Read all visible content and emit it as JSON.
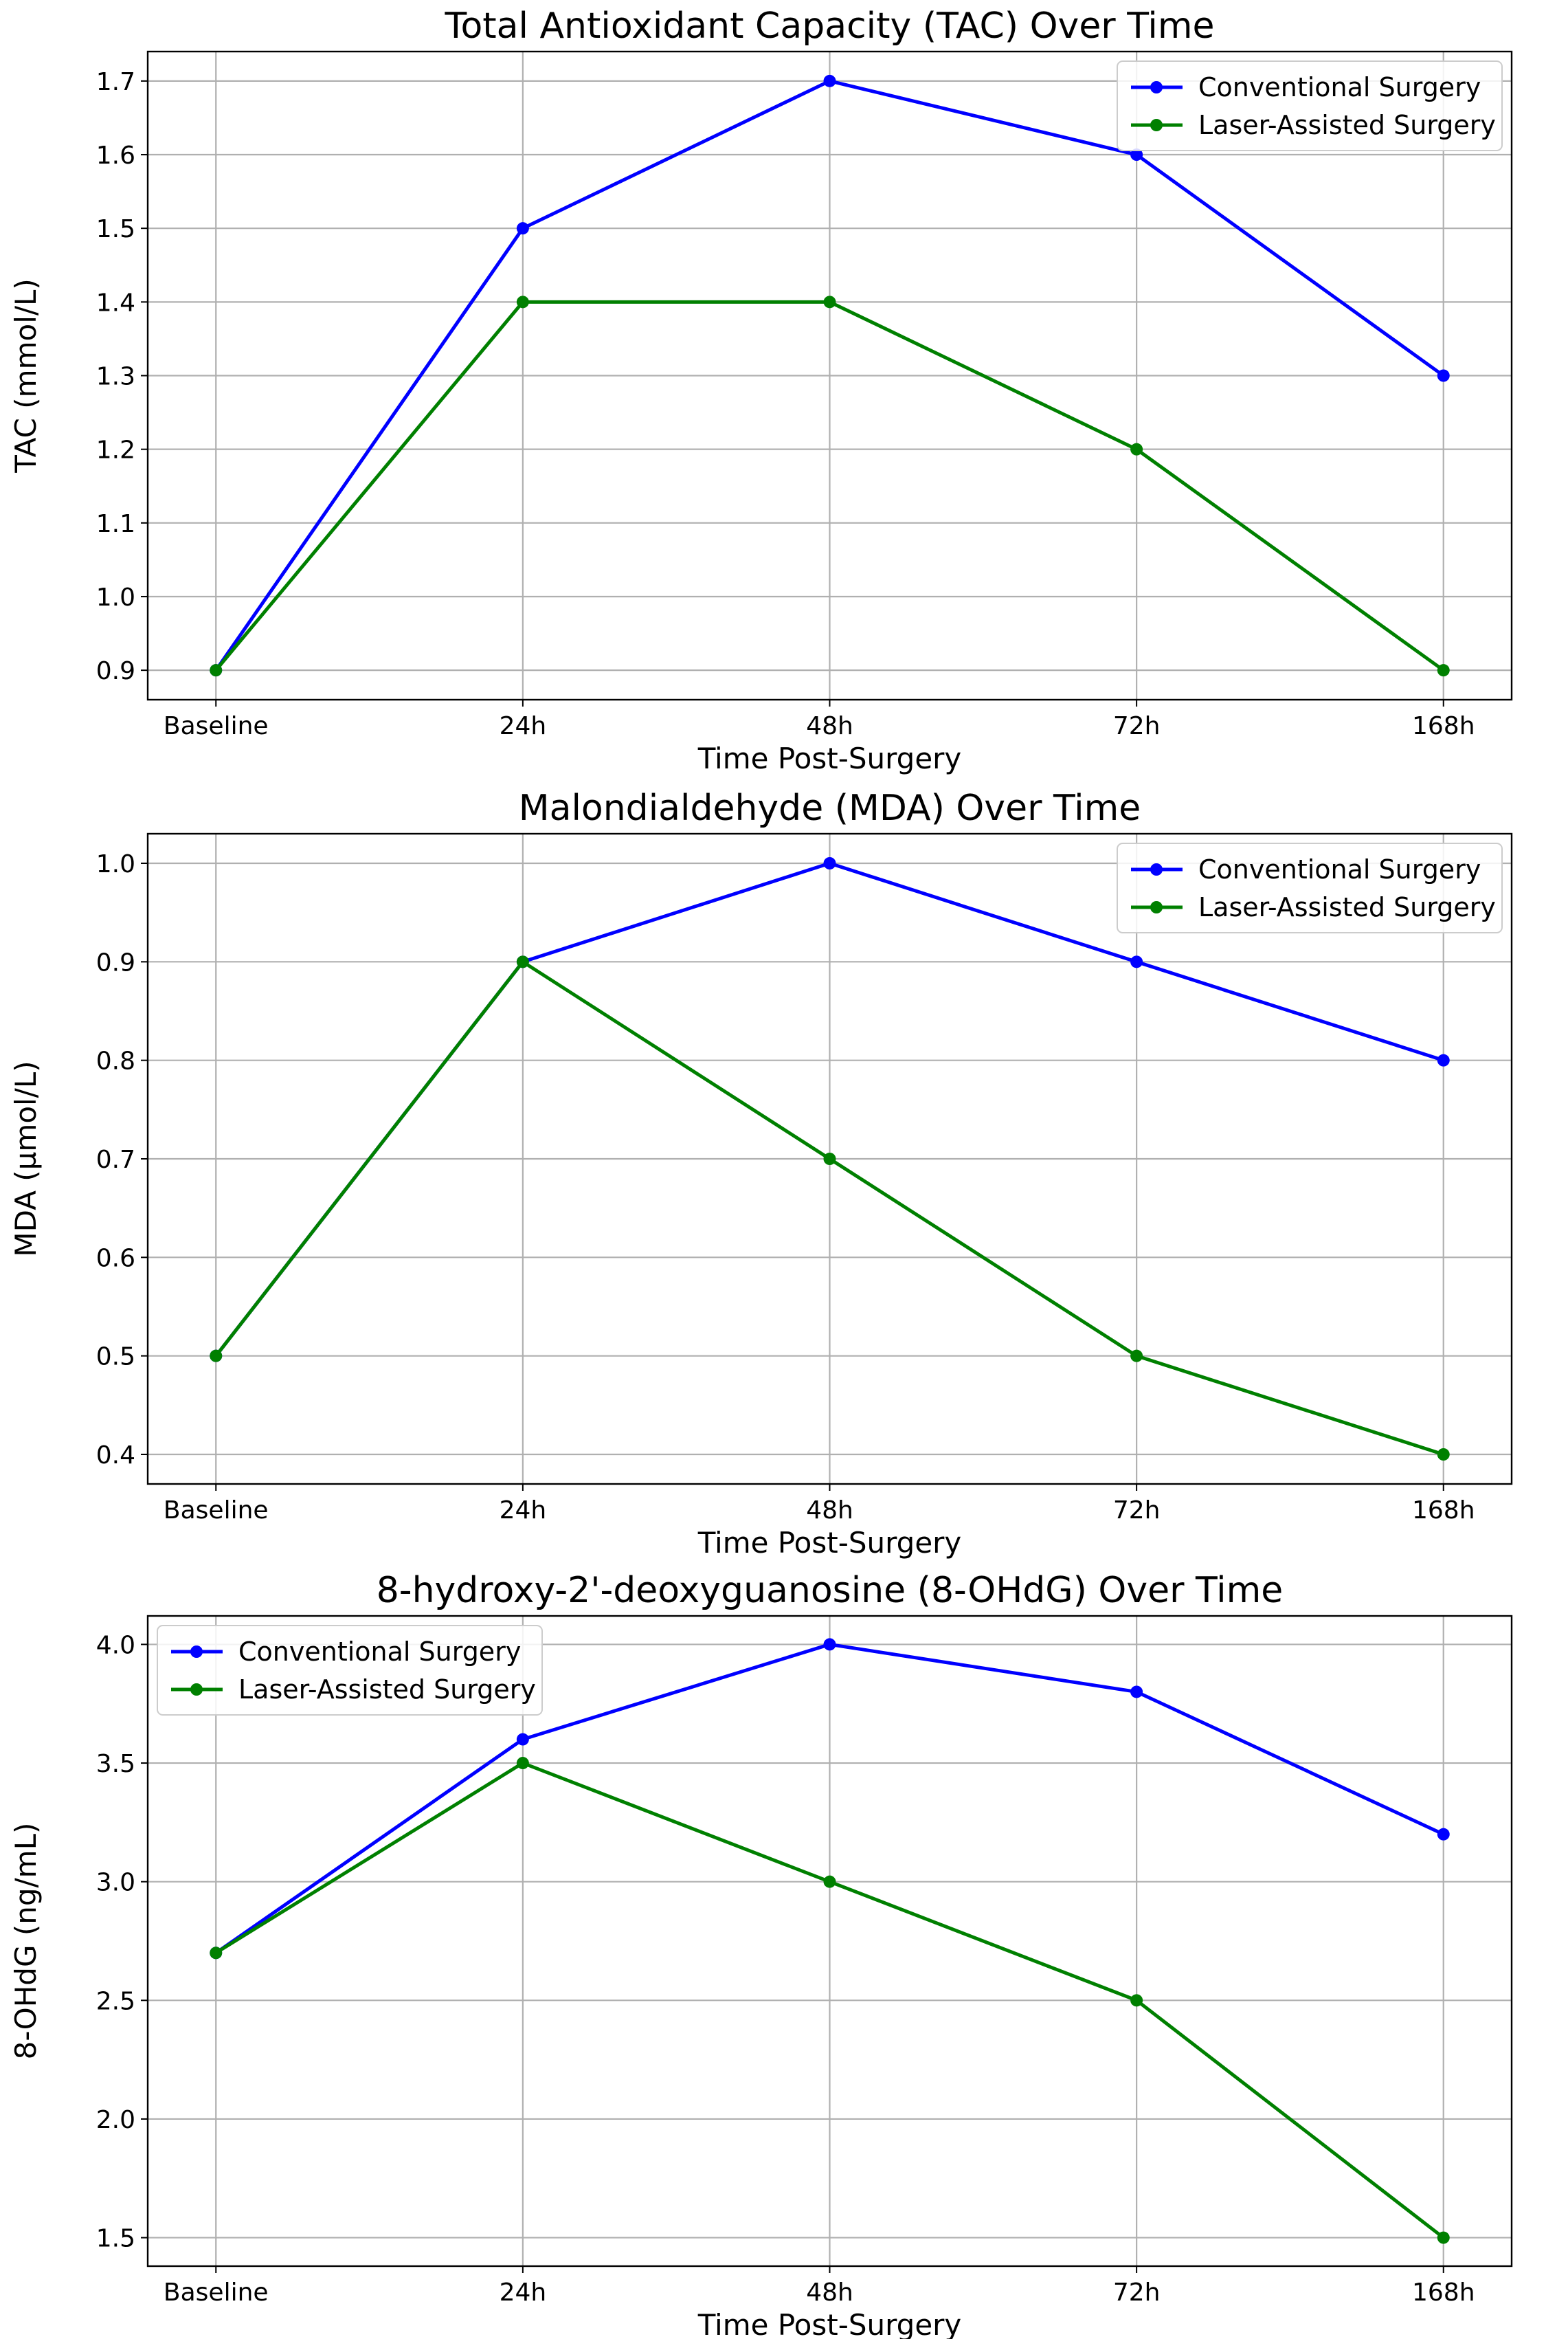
{
  "chart_data": [
    {
      "type": "line",
      "title": "Total Antioxidant Capacity (TAC) Over Time",
      "xlabel": "Time Post-Surgery",
      "ylabel": "TAC (mmol/L)",
      "categories": [
        "Baseline",
        "24h",
        "48h",
        "72h",
        "168h"
      ],
      "ylim": [
        0.86,
        1.74
      ],
      "yticks": [
        0.9,
        1.0,
        1.1,
        1.2,
        1.3,
        1.4,
        1.5,
        1.6,
        1.7
      ],
      "ytick_labels": [
        "0.9",
        "1.0",
        "1.1",
        "1.2",
        "1.3",
        "1.4",
        "1.5",
        "1.6",
        "1.7"
      ],
      "grid": true,
      "legend_position": "top-right",
      "series": [
        {
          "name": "Conventional Surgery",
          "color": "#0000ff",
          "values": [
            0.9,
            1.5,
            1.7,
            1.6,
            1.3
          ]
        },
        {
          "name": "Laser-Assisted Surgery",
          "color": "#008000",
          "values": [
            0.9,
            1.4,
            1.4,
            1.2,
            0.9
          ]
        }
      ]
    },
    {
      "type": "line",
      "title": "Malondialdehyde (MDA) Over Time",
      "xlabel": "Time Post-Surgery",
      "ylabel": "MDA (µmol/L)",
      "categories": [
        "Baseline",
        "24h",
        "48h",
        "72h",
        "168h"
      ],
      "ylim": [
        0.37,
        1.03
      ],
      "yticks": [
        0.4,
        0.5,
        0.6,
        0.7,
        0.8,
        0.9,
        1.0
      ],
      "ytick_labels": [
        "0.4",
        "0.5",
        "0.6",
        "0.7",
        "0.8",
        "0.9",
        "1.0"
      ],
      "grid": true,
      "legend_position": "top-right",
      "series": [
        {
          "name": "Conventional Surgery",
          "color": "#0000ff",
          "values": [
            0.5,
            0.9,
            1.0,
            0.9,
            0.8
          ]
        },
        {
          "name": "Laser-Assisted Surgery",
          "color": "#008000",
          "values": [
            0.5,
            0.9,
            0.7,
            0.5,
            0.4
          ]
        }
      ]
    },
    {
      "type": "line",
      "title": "8-hydroxy-2'-deoxyguanosine (8-OHdG) Over Time",
      "xlabel": "Time Post-Surgery",
      "ylabel": "8-OHdG (ng/mL)",
      "categories": [
        "Baseline",
        "24h",
        "48h",
        "72h",
        "168h"
      ],
      "ylim": [
        1.38,
        4.12
      ],
      "yticks": [
        1.5,
        2.0,
        2.5,
        3.0,
        3.5,
        4.0
      ],
      "ytick_labels": [
        "1.5",
        "2.0",
        "2.5",
        "3.0",
        "3.5",
        "4.0"
      ],
      "grid": true,
      "legend_position": "top-left",
      "series": [
        {
          "name": "Conventional Surgery",
          "color": "#0000ff",
          "values": [
            2.7,
            3.6,
            4.0,
            3.8,
            3.2
          ]
        },
        {
          "name": "Laser-Assisted Surgery",
          "color": "#008000",
          "values": [
            2.7,
            3.5,
            3.0,
            2.5,
            1.5
          ]
        }
      ]
    }
  ]
}
